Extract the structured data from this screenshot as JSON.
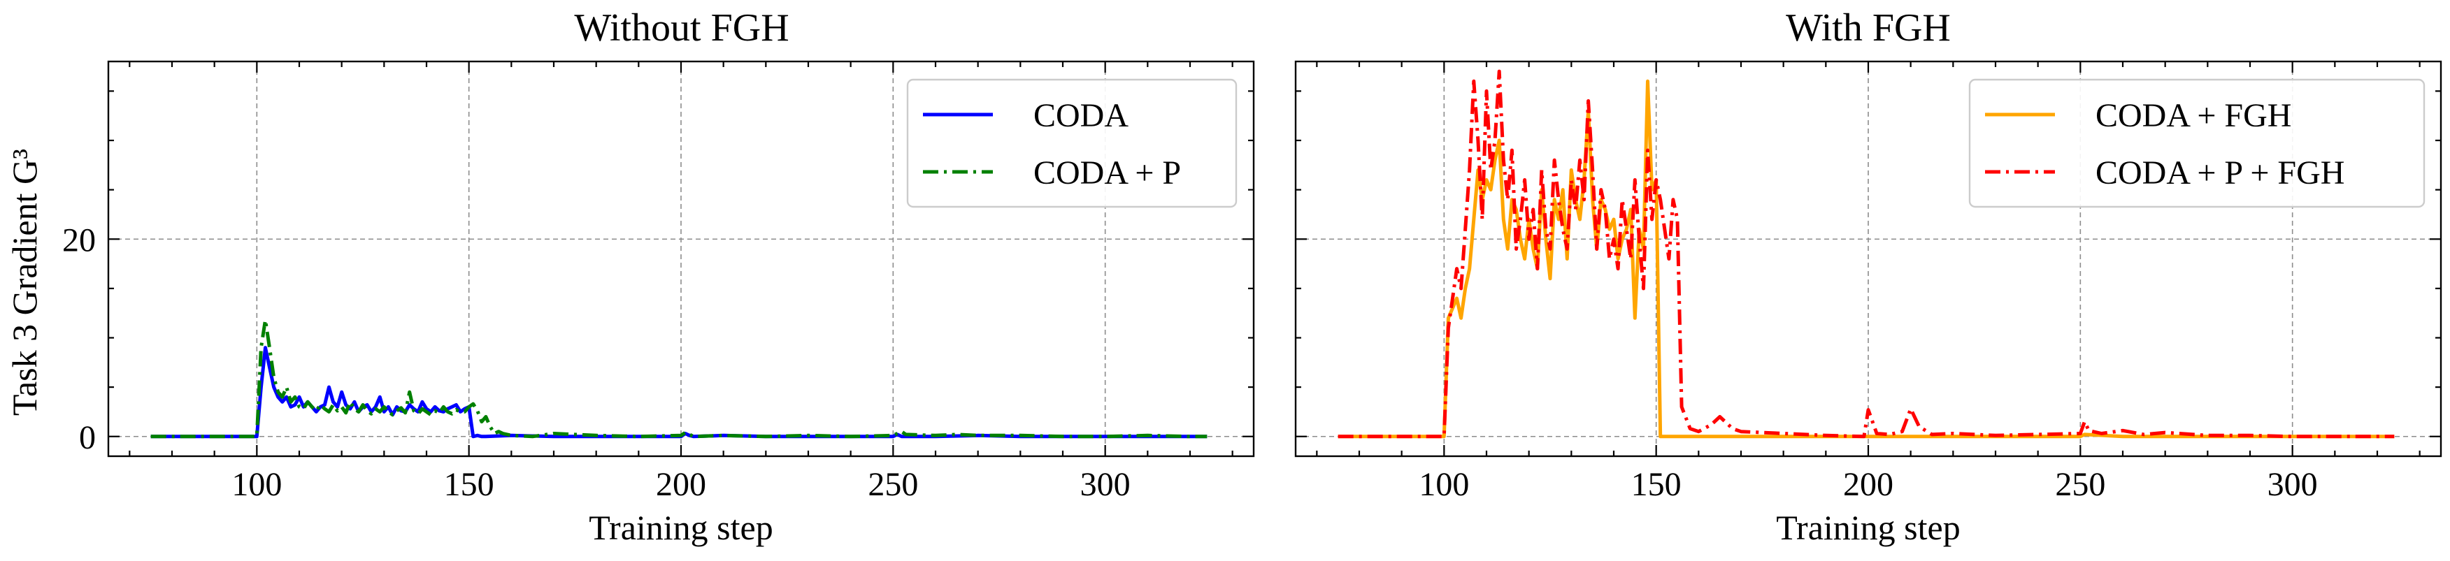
{
  "chart_data": [
    {
      "type": "line",
      "title": "Without FGH",
      "xlabel": "Training step",
      "ylabel": "Task 3 Gradient G³",
      "xlim": [
        65,
        335
      ],
      "ylim": [
        -2,
        38
      ],
      "xticks": [
        "100",
        "150",
        "200",
        "250",
        "300"
      ],
      "yticks": [
        "0",
        "20"
      ],
      "grid": true,
      "legend_position": "top-right",
      "series": [
        {
          "name": "CODA",
          "color": "#0000ff",
          "style": "solid",
          "x": [
            75,
            99,
            100,
            101,
            102,
            103,
            104,
            105,
            106,
            107,
            108,
            109,
            110,
            111,
            112,
            113,
            114,
            115,
            116,
            117,
            118,
            119,
            120,
            121,
            122,
            123,
            124,
            125,
            126,
            127,
            128,
            129,
            130,
            131,
            132,
            133,
            134,
            135,
            136,
            137,
            138,
            139,
            140,
            141,
            142,
            143,
            144,
            145,
            146,
            147,
            148,
            149,
            150,
            151,
            152,
            153,
            154,
            160,
            170,
            180,
            190,
            200,
            201,
            202,
            203,
            210,
            220,
            230,
            240,
            250,
            251,
            252,
            260,
            270,
            280,
            290,
            300,
            310,
            320,
            324
          ],
          "y": [
            0,
            0,
            0,
            5,
            9,
            7,
            5,
            4,
            3.5,
            4,
            3,
            3.2,
            4,
            3,
            3.5,
            3,
            2.5,
            3,
            3.2,
            5,
            3.5,
            3,
            4.5,
            3.2,
            2.8,
            3.5,
            2.5,
            3,
            3.2,
            2.5,
            3,
            4,
            2.5,
            3,
            2.2,
            3,
            2.6,
            2.5,
            3.2,
            2.8,
            2.5,
            3.5,
            2.8,
            2.5,
            3,
            2.6,
            2.5,
            2.8,
            3,
            3.2,
            2.5,
            2.8,
            3,
            0,
            0.1,
            0,
            0,
            0.1,
            0,
            0,
            0,
            0,
            0.3,
            0.1,
            0,
            0.1,
            0,
            0,
            0,
            0,
            0.2,
            0,
            0,
            0.1,
            0,
            0,
            0,
            0,
            0,
            0
          ]
        },
        {
          "name": "CODA + P",
          "color": "#008000",
          "style": "dashdot",
          "x": [
            75,
            99,
            100,
            101,
            102,
            103,
            104,
            105,
            106,
            107,
            108,
            109,
            110,
            111,
            112,
            113,
            114,
            115,
            116,
            117,
            118,
            119,
            120,
            121,
            122,
            123,
            124,
            125,
            126,
            127,
            128,
            129,
            130,
            131,
            132,
            133,
            134,
            135,
            136,
            137,
            138,
            139,
            140,
            141,
            142,
            143,
            144,
            145,
            146,
            147,
            148,
            149,
            150,
            151,
            152,
            153,
            154,
            155,
            156,
            157,
            158,
            160,
            165,
            170,
            180,
            190,
            200,
            201,
            202,
            203,
            210,
            220,
            230,
            240,
            250,
            251,
            252,
            253,
            260,
            265,
            270,
            280,
            290,
            300,
            310,
            320,
            324
          ],
          "y": [
            0,
            0,
            0,
            9,
            11.8,
            9,
            6,
            4.5,
            4,
            5,
            3.5,
            4,
            3,
            2.8,
            3.5,
            3,
            2.6,
            3.2,
            2.8,
            2.5,
            3.2,
            2.6,
            3,
            2.4,
            3.5,
            2.8,
            2.5,
            3.2,
            2.6,
            2.3,
            2.8,
            2.5,
            3,
            2.5,
            2.2,
            2.6,
            2.9,
            2.4,
            4.5,
            2.6,
            2.3,
            2.8,
            2.5,
            2.2,
            2.6,
            2.4,
            3,
            2.5,
            2.3,
            2.7,
            2.5,
            2.5,
            3,
            3.3,
            2.6,
            1.5,
            2,
            1,
            0.3,
            0.5,
            0.3,
            0.1,
            0,
            0.3,
            0.1,
            0,
            0.1,
            0.4,
            0.2,
            0,
            0.1,
            0,
            0.1,
            0,
            0.1,
            0.3,
            0.5,
            0.2,
            0.1,
            0.2,
            0.1,
            0.1,
            0,
            0,
            0.1,
            0,
            0
          ]
        }
      ]
    },
    {
      "type": "line",
      "title": "With FGH",
      "xlabel": "Training step",
      "ylabel": "",
      "xlim": [
        65,
        335
      ],
      "ylim": [
        -2,
        38
      ],
      "xticks": [
        "100",
        "150",
        "200",
        "250",
        "300"
      ],
      "yticks": [
        "0",
        "20"
      ],
      "grid": true,
      "legend_position": "top-right",
      "series": [
        {
          "name": "CODA + FGH",
          "color": "#ffa500",
          "style": "solid",
          "x": [
            75,
            99,
            100,
            101,
            102,
            103,
            104,
            105,
            106,
            107,
            108,
            109,
            110,
            111,
            112,
            113,
            114,
            115,
            116,
            117,
            118,
            119,
            120,
            121,
            122,
            123,
            124,
            125,
            126,
            127,
            128,
            129,
            130,
            131,
            132,
            133,
            134,
            135,
            136,
            137,
            138,
            139,
            140,
            141,
            142,
            143,
            144,
            145,
            146,
            147,
            148,
            149,
            150,
            151,
            152,
            155,
            160,
            180,
            200,
            220,
            240,
            250,
            251,
            260,
            280,
            300,
            320,
            324
          ],
          "y": [
            0,
            0,
            0,
            12,
            13,
            14,
            12,
            15,
            17,
            22,
            27,
            24,
            26,
            25,
            28,
            30,
            22,
            19,
            24,
            23,
            20,
            18,
            22,
            19,
            17,
            25,
            20,
            16,
            24,
            22,
            25,
            18,
            27,
            24,
            22,
            26,
            33,
            24,
            19,
            24,
            23,
            21,
            22,
            18,
            20,
            21,
            23,
            12,
            21,
            19,
            36,
            25,
            26,
            0,
            0,
            0,
            0,
            0,
            0,
            0,
            0,
            0,
            0.2,
            0,
            0,
            0,
            0,
            0
          ]
        },
        {
          "name": "CODA + P + FGH",
          "color": "#ff0000",
          "style": "dashdot",
          "x": [
            75,
            99,
            100,
            101,
            102,
            103,
            104,
            105,
            106,
            107,
            108,
            109,
            110,
            111,
            112,
            113,
            114,
            115,
            116,
            117,
            118,
            119,
            120,
            121,
            122,
            123,
            124,
            125,
            126,
            127,
            128,
            129,
            130,
            131,
            132,
            133,
            134,
            135,
            136,
            137,
            138,
            139,
            140,
            141,
            142,
            143,
            144,
            145,
            146,
            147,
            148,
            149,
            150,
            151,
            152,
            153,
            154,
            155,
            156,
            158,
            160,
            163,
            165,
            168,
            170,
            180,
            190,
            199,
            200,
            201,
            202,
            205,
            208,
            210,
            212,
            215,
            220,
            230,
            240,
            250,
            251,
            252,
            255,
            260,
            265,
            270,
            280,
            290,
            300,
            310,
            320,
            324
          ],
          "y": [
            0,
            0,
            0,
            11,
            14,
            17,
            15,
            21,
            27,
            36,
            30,
            22,
            35,
            27,
            30,
            37,
            28,
            24,
            29,
            19,
            22,
            26,
            20,
            23,
            17,
            27,
            21,
            19,
            28,
            24,
            21,
            19,
            26,
            23,
            28,
            24,
            34,
            27,
            19,
            25,
            23,
            18,
            20,
            17,
            24,
            21,
            18,
            26,
            20,
            15,
            29,
            22,
            26,
            24,
            21,
            18,
            24,
            22,
            3,
            0.8,
            0.5,
            1.2,
            2,
            0.8,
            0.5,
            0.3,
            0.1,
            0,
            2.7,
            1.5,
            0.3,
            0.2,
            0.5,
            2.8,
            1,
            0.2,
            0.3,
            0.1,
            0.2,
            0.3,
            1.5,
            0.6,
            0.3,
            0.6,
            0.2,
            0.4,
            0.1,
            0.1,
            0,
            0,
            0,
            0
          ]
        }
      ]
    }
  ]
}
